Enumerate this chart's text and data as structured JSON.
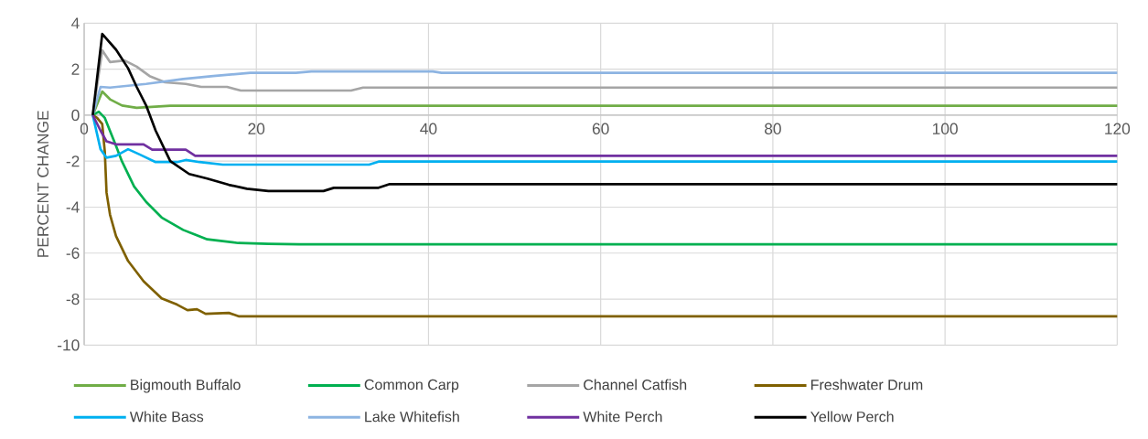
{
  "chart_data": {
    "type": "line",
    "ylabel": "PERCENT CHANGE",
    "xlim": [
      0,
      120
    ],
    "ylim": [
      -10,
      4
    ],
    "xticks": [
      0,
      20,
      40,
      60,
      80,
      100,
      120
    ],
    "yticks": [
      -10,
      -8,
      -6,
      -4,
      -2,
      0,
      2,
      4
    ],
    "grid": true,
    "legend": "bottom",
    "marker": "none",
    "line_style": "solid",
    "series": [
      {
        "name": "Bigmouth Buffalo",
        "color": "#70ad47",
        "x": [
          1,
          2.1,
          3,
          4.4,
          6.1,
          10,
          120
        ],
        "values": [
          0,
          1.03,
          0.69,
          0.42,
          0.32,
          0.41,
          0.41
        ]
      },
      {
        "name": "Common Carp",
        "color": "#00b050",
        "x": [
          1,
          1.7,
          2.4,
          3.7,
          4.4,
          5.8,
          7.2,
          9,
          11.5,
          14.3,
          17.9,
          21.4,
          25,
          120
        ],
        "values": [
          0,
          0.15,
          -0.12,
          -1.34,
          -2.02,
          -3.1,
          -3.77,
          -4.45,
          -4.99,
          -5.4,
          -5.56,
          -5.6,
          -5.62,
          -5.62
        ]
      },
      {
        "name": "Channel Catfish",
        "color": "#a5a5a5",
        "x": [
          1,
          2.1,
          3,
          4.7,
          6.1,
          7.6,
          9.4,
          11.8,
          13.6,
          16.6,
          18.2,
          31,
          32.4,
          120
        ],
        "values": [
          0,
          2.82,
          2.31,
          2.38,
          2.11,
          1.7,
          1.43,
          1.36,
          1.23,
          1.23,
          1.07,
          1.07,
          1.2,
          1.2
        ]
      },
      {
        "name": "Freshwater Drum",
        "color": "#7f6000",
        "x": [
          1,
          1.5,
          2.1,
          2.4,
          2.6,
          3,
          3.7,
          5.1,
          6.9,
          9,
          10.8,
          12,
          13.1,
          14.1,
          16.8,
          18,
          120
        ],
        "values": [
          0,
          -0.12,
          -0.39,
          -1.6,
          -3.37,
          -4.32,
          -5.26,
          -6.34,
          -7.22,
          -7.97,
          -8.24,
          -8.48,
          -8.44,
          -8.64,
          -8.6,
          -8.75,
          -8.75
        ]
      },
      {
        "name": "White Bass",
        "color": "#00b0f0",
        "x": [
          1,
          1.9,
          2.6,
          3.7,
          5.1,
          6.5,
          8.3,
          10.8,
          11.8,
          13.4,
          16.1,
          33.1,
          34.2,
          120
        ],
        "values": [
          0,
          -1.48,
          -1.85,
          -1.77,
          -1.48,
          -1.72,
          -2.04,
          -2.04,
          -1.95,
          -2.04,
          -2.15,
          -2.15,
          -2.02,
          -2.02
        ]
      },
      {
        "name": "Lake Whitefish",
        "color": "#8db4e2",
        "x": [
          1,
          1.9,
          3,
          7.2,
          11.5,
          15,
          19.3,
          24.6,
          26.4,
          40.5,
          41.5,
          120
        ],
        "values": [
          0,
          1.23,
          1.2,
          1.36,
          1.57,
          1.7,
          1.84,
          1.84,
          1.9,
          1.9,
          1.84,
          1.84
        ]
      },
      {
        "name": "White Perch",
        "color": "#7030a0",
        "x": [
          1,
          1.9,
          2.6,
          3.7,
          6.9,
          7.9,
          11.8,
          12.9,
          120
        ],
        "values": [
          0,
          -0.67,
          -1.14,
          -1.27,
          -1.27,
          -1.5,
          -1.5,
          -1.77,
          -1.77
        ]
      },
      {
        "name": "Yellow Perch",
        "color": "#000000",
        "x": [
          1,
          2.1,
          3.7,
          5.1,
          6.1,
          7.2,
          8.3,
          10,
          12.2,
          14.3,
          16.8,
          18.9,
          21.4,
          27.8,
          29,
          34.2,
          35.5,
          120
        ],
        "values": [
          0,
          3.53,
          2.85,
          2.04,
          1.23,
          0.42,
          -0.67,
          -2,
          -2.56,
          -2.76,
          -3.03,
          -3.2,
          -3.3,
          -3.3,
          -3.16,
          -3.16,
          -3,
          -3
        ]
      }
    ]
  }
}
